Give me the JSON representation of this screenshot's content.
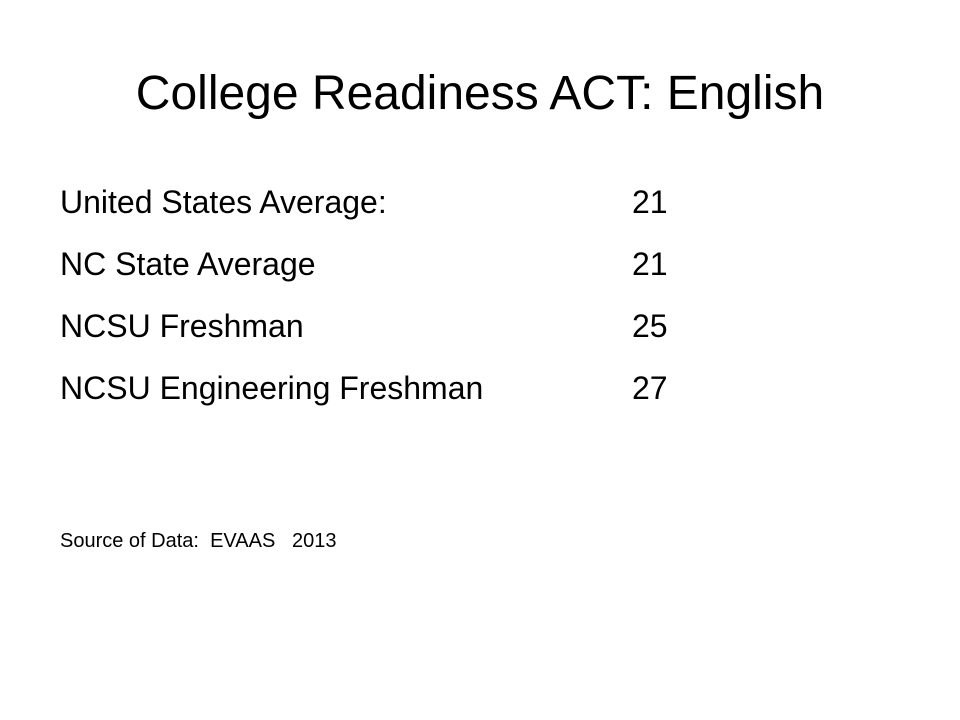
{
  "slide": {
    "title": "College Readiness ACT: English",
    "stats": [
      {
        "label": "United States Average:",
        "value": "21"
      },
      {
        "label": "NC State Average",
        "value": "21"
      },
      {
        "label": "NCSU Freshman",
        "value": "25"
      },
      {
        "label": "NCSU Engineering Freshman",
        "value": "27"
      }
    ],
    "source": "Source of Data:  EVAAS   2013"
  }
}
